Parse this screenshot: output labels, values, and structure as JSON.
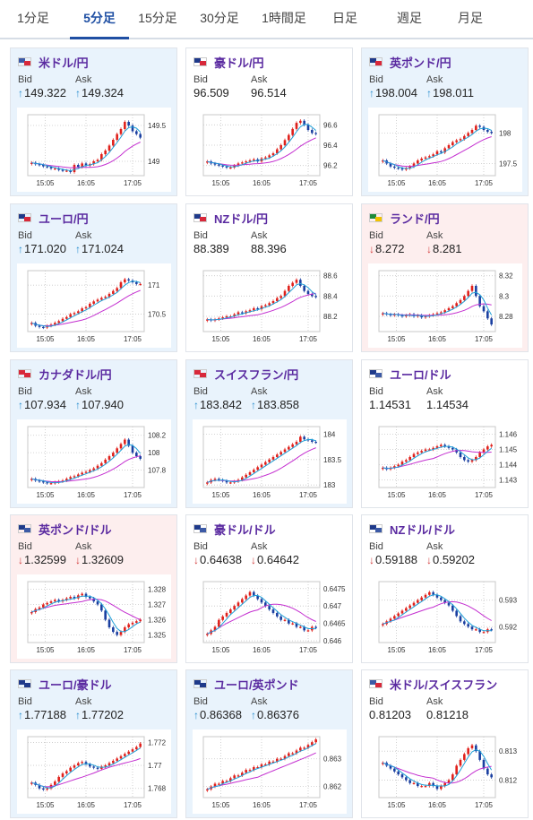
{
  "tabs": [
    {
      "label": "1分足",
      "active": false
    },
    {
      "label": "5分足",
      "active": true
    },
    {
      "label": "15分足",
      "active": false
    },
    {
      "label": "30分足",
      "active": false
    },
    {
      "label": "1時間足",
      "active": false
    },
    {
      "label": "日足",
      "active": false
    },
    {
      "label": "週足",
      "active": false
    },
    {
      "label": "月足",
      "active": false
    }
  ],
  "labels": {
    "bid": "Bid",
    "ask": "Ask"
  },
  "colors": {
    "up_candle": "#e0201b",
    "down_candle": "#1a3fa0",
    "ma_fast": "#1fa0d8",
    "ma_slow": "#c42fd0",
    "arrow_up": "#2a8fd0",
    "arrow_down": "#d23b3b",
    "pair_text": "#5a2aa0"
  },
  "cards": [
    {
      "pair": "米ドル/円",
      "flag": [
        "#3c5aa6",
        "#d8283a"
      ],
      "state": "up",
      "bid": "149.322",
      "ask": "149.324",
      "dir": "up"
    },
    {
      "pair": "豪ドル/円",
      "flag": [
        "#1f3a8a",
        "#d8283a"
      ],
      "state": "neutral",
      "bid": "96.509",
      "ask": "96.514",
      "dir": ""
    },
    {
      "pair": "英ポンド/円",
      "flag": [
        "#1f3a8a",
        "#d8283a"
      ],
      "state": "up",
      "bid": "198.004",
      "ask": "198.011",
      "dir": "up"
    },
    {
      "pair": "ユーロ/円",
      "flag": [
        "#1f3a8a",
        "#d8283a"
      ],
      "state": "up",
      "bid": "171.020",
      "ask": "171.024",
      "dir": "up"
    },
    {
      "pair": "NZドル/円",
      "flag": [
        "#1f3a8a",
        "#d8283a"
      ],
      "state": "neutral",
      "bid": "88.389",
      "ask": "88.396",
      "dir": ""
    },
    {
      "pair": "ランド/円",
      "flag": [
        "#1e8a3a",
        "#f2c200"
      ],
      "state": "down",
      "bid": "8.272",
      "ask": "8.281",
      "dir": "down"
    },
    {
      "pair": "カナダドル/円",
      "flag": [
        "#d8283a",
        "#d8283a"
      ],
      "state": "up",
      "bid": "107.934",
      "ask": "107.940",
      "dir": "up"
    },
    {
      "pair": "スイスフラン/円",
      "flag": [
        "#d8283a",
        "#d8283a"
      ],
      "state": "up",
      "bid": "183.842",
      "ask": "183.858",
      "dir": "up"
    },
    {
      "pair": "ユーロ/ドル",
      "flag": [
        "#1f3a8a",
        "#3c5aa6"
      ],
      "state": "neutral",
      "bid": "1.14531",
      "ask": "1.14534",
      "dir": ""
    },
    {
      "pair": "英ポンド/ドル",
      "flag": [
        "#1f3a8a",
        "#3c5aa6"
      ],
      "state": "down",
      "bid": "1.32599",
      "ask": "1.32609",
      "dir": "down"
    },
    {
      "pair": "豪ドル/ドル",
      "flag": [
        "#1f3a8a",
        "#3c5aa6"
      ],
      "state": "neutral",
      "bid": "0.64638",
      "ask": "0.64642",
      "dir": "down"
    },
    {
      "pair": "NZドル/ドル",
      "flag": [
        "#1f3a8a",
        "#3c5aa6"
      ],
      "state": "neutral",
      "bid": "0.59188",
      "ask": "0.59202",
      "dir": "down"
    },
    {
      "pair": "ユーロ/豪ドル",
      "flag": [
        "#1f3a8a",
        "#1f3a8a"
      ],
      "state": "up",
      "bid": "1.77188",
      "ask": "1.77202",
      "dir": "up"
    },
    {
      "pair": "ユーロ/英ポンド",
      "flag": [
        "#1f3a8a",
        "#1f3a8a"
      ],
      "state": "up",
      "bid": "0.86368",
      "ask": "0.86376",
      "dir": "up"
    },
    {
      "pair": "米ドル/スイスフラン",
      "flag": [
        "#3c5aa6",
        "#d8283a"
      ],
      "state": "neutral",
      "bid": "0.81203",
      "ask": "0.81218",
      "dir": ""
    }
  ],
  "chart_data": [
    {
      "type": "candlestick",
      "pair": "米ドル/円",
      "x_ticks": [
        "15:05",
        "16:05",
        "17:05"
      ],
      "y_ticks": [
        "149.5",
        "149"
      ],
      "ylim": [
        148.8,
        149.65
      ],
      "closes": [
        148.98,
        148.96,
        148.95,
        148.93,
        148.92,
        148.9,
        148.9,
        148.88,
        148.87,
        148.87,
        148.85,
        148.95,
        148.92,
        148.97,
        148.94,
        148.96,
        149.0,
        149.02,
        149.1,
        149.15,
        149.22,
        149.3,
        149.38,
        149.45,
        149.55,
        149.5,
        149.42,
        149.38,
        149.33
      ]
    },
    {
      "type": "candlestick",
      "pair": "豪ドル/円",
      "x_ticks": [
        "15:05",
        "16:05",
        "17:05"
      ],
      "y_ticks": [
        "96.6",
        "96.4",
        "96.2"
      ],
      "ylim": [
        96.1,
        96.7
      ],
      "closes": [
        96.24,
        96.22,
        96.21,
        96.2,
        96.19,
        96.18,
        96.18,
        96.2,
        96.22,
        96.23,
        96.24,
        96.25,
        96.26,
        96.24,
        96.27,
        96.28,
        96.3,
        96.32,
        96.36,
        96.4,
        96.45,
        96.5,
        96.56,
        96.62,
        96.64,
        96.6,
        96.55,
        96.52,
        96.51
      ]
    },
    {
      "type": "candlestick",
      "pair": "英ポンド/円",
      "x_ticks": [
        "15:05",
        "16:05",
        "17:05"
      ],
      "y_ticks": [
        "198",
        "197.5"
      ],
      "ylim": [
        197.3,
        198.3
      ],
      "closes": [
        197.55,
        197.5,
        197.45,
        197.43,
        197.42,
        197.4,
        197.42,
        197.45,
        197.5,
        197.55,
        197.58,
        197.6,
        197.62,
        197.65,
        197.7,
        197.68,
        197.75,
        197.8,
        197.85,
        197.88,
        197.9,
        197.95,
        198.0,
        198.05,
        198.12,
        198.1,
        198.05,
        198.02,
        198.0
      ]
    },
    {
      "type": "candlestick",
      "pair": "ユーロ/円",
      "x_ticks": [
        "15:05",
        "16:05",
        "17:05"
      ],
      "y_ticks": [
        "171",
        "170.5"
      ],
      "ylim": [
        170.2,
        171.25
      ],
      "closes": [
        170.35,
        170.3,
        170.28,
        170.27,
        170.3,
        170.32,
        170.35,
        170.38,
        170.42,
        170.45,
        170.5,
        170.52,
        170.55,
        170.6,
        170.62,
        170.68,
        170.72,
        170.75,
        170.78,
        170.8,
        170.85,
        170.9,
        170.95,
        171.05,
        171.1,
        171.08,
        171.05,
        171.02,
        171.02
      ]
    },
    {
      "type": "candlestick",
      "pair": "NZドル/円",
      "x_ticks": [
        "15:05",
        "16:05",
        "17:05"
      ],
      "y_ticks": [
        "88.6",
        "88.4",
        "88.2"
      ],
      "ylim": [
        88.05,
        88.65
      ],
      "closes": [
        88.17,
        88.16,
        88.17,
        88.18,
        88.19,
        88.2,
        88.2,
        88.22,
        88.24,
        88.23,
        88.25,
        88.26,
        88.28,
        88.27,
        88.3,
        88.31,
        88.33,
        88.35,
        88.38,
        88.4,
        88.45,
        88.5,
        88.53,
        88.56,
        88.5,
        88.45,
        88.42,
        88.4,
        88.39
      ]
    },
    {
      "type": "candlestick",
      "pair": "ランド/円",
      "x_ticks": [
        "15:05",
        "16:05",
        "17:05"
      ],
      "y_ticks": [
        "8.32",
        "8.3",
        "8.28"
      ],
      "ylim": [
        8.265,
        8.325
      ],
      "closes": [
        8.283,
        8.282,
        8.281,
        8.282,
        8.281,
        8.28,
        8.281,
        8.282,
        8.28,
        8.281,
        8.279,
        8.28,
        8.281,
        8.282,
        8.283,
        8.284,
        8.286,
        8.288,
        8.29,
        8.293,
        8.296,
        8.3,
        8.305,
        8.31,
        8.3,
        8.29,
        8.285,
        8.278,
        8.272
      ]
    },
    {
      "type": "candlestick",
      "pair": "カナダドル/円",
      "x_ticks": [
        "15:05",
        "16:05",
        "17:05"
      ],
      "y_ticks": [
        "108.2",
        "108",
        "107.8"
      ],
      "ylim": [
        107.6,
        108.3
      ],
      "closes": [
        107.7,
        107.68,
        107.67,
        107.66,
        107.65,
        107.65,
        107.66,
        107.67,
        107.68,
        107.7,
        107.72,
        107.73,
        107.75,
        107.77,
        107.78,
        107.8,
        107.82,
        107.85,
        107.88,
        107.92,
        107.96,
        108.0,
        108.05,
        108.1,
        108.15,
        108.08,
        108.0,
        107.96,
        107.93
      ]
    },
    {
      "type": "candlestick",
      "pair": "スイスフラン/円",
      "x_ticks": [
        "15:05",
        "16:05",
        "17:05"
      ],
      "y_ticks": [
        "184",
        "183.5",
        "183"
      ],
      "ylim": [
        182.95,
        184.15
      ],
      "closes": [
        183.05,
        183.1,
        183.12,
        183.1,
        183.08,
        183.05,
        183.05,
        183.07,
        183.1,
        183.15,
        183.2,
        183.25,
        183.3,
        183.35,
        183.4,
        183.45,
        183.5,
        183.55,
        183.6,
        183.65,
        183.7,
        183.75,
        183.8,
        183.85,
        183.95,
        183.9,
        183.88,
        183.85,
        183.84
      ]
    },
    {
      "type": "candlestick",
      "pair": "ユーロ/ドル",
      "x_ticks": [
        "15:05",
        "16:05",
        "17:05"
      ],
      "y_ticks": [
        "1.146",
        "1.145",
        "1.144",
        "1.143"
      ],
      "ylim": [
        1.1425,
        1.1465
      ],
      "closes": [
        1.1438,
        1.1437,
        1.1438,
        1.1439,
        1.144,
        1.1442,
        1.1443,
        1.1445,
        1.1447,
        1.1448,
        1.1449,
        1.145,
        1.145,
        1.1451,
        1.1452,
        1.1453,
        1.1452,
        1.1451,
        1.145,
        1.1448,
        1.1445,
        1.1443,
        1.1442,
        1.1443,
        1.1445,
        1.1448,
        1.145,
        1.1452,
        1.1453
      ]
    },
    {
      "type": "candlestick",
      "pair": "英ポンド/ドル",
      "x_ticks": [
        "15:05",
        "16:05",
        "17:05"
      ],
      "y_ticks": [
        "1.328",
        "1.327",
        "1.326",
        "1.325"
      ],
      "ylim": [
        1.3245,
        1.3285
      ],
      "closes": [
        1.3265,
        1.3267,
        1.3268,
        1.327,
        1.3271,
        1.3272,
        1.3273,
        1.3272,
        1.3273,
        1.3274,
        1.3275,
        1.3274,
        1.3276,
        1.3277,
        1.3275,
        1.3274,
        1.3272,
        1.327,
        1.3266,
        1.326,
        1.3255,
        1.3252,
        1.325,
        1.3252,
        1.3255,
        1.3257,
        1.3258,
        1.3259,
        1.326
      ]
    },
    {
      "type": "candlestick",
      "pair": "豪ドル/ドル",
      "x_ticks": [
        "15:05",
        "16:05",
        "17:05"
      ],
      "y_ticks": [
        "0.6475",
        "0.647",
        "0.6465",
        "0.646"
      ],
      "ylim": [
        0.64595,
        0.6477
      ],
      "closes": [
        0.6462,
        0.6463,
        0.6464,
        0.6466,
        0.6467,
        0.6468,
        0.6469,
        0.647,
        0.6471,
        0.6472,
        0.6473,
        0.6474,
        0.6473,
        0.6472,
        0.6471,
        0.647,
        0.6469,
        0.6468,
        0.6467,
        0.6466,
        0.6466,
        0.6465,
        0.6465,
        0.6464,
        0.6464,
        0.6463,
        0.6463,
        0.6464,
        0.64638
      ]
    },
    {
      "type": "candlestick",
      "pair": "NZドル/ドル",
      "x_ticks": [
        "15:05",
        "16:05",
        "17:05"
      ],
      "y_ticks": [
        "0.593",
        "0.592"
      ],
      "ylim": [
        0.5914,
        0.5937
      ],
      "closes": [
        0.5921,
        0.5922,
        0.5923,
        0.5924,
        0.5925,
        0.5926,
        0.5927,
        0.5928,
        0.5929,
        0.593,
        0.5931,
        0.5932,
        0.5933,
        0.5932,
        0.5931,
        0.593,
        0.5929,
        0.5928,
        0.5926,
        0.5924,
        0.5922,
        0.5921,
        0.592,
        0.5919,
        0.5919,
        0.5918,
        0.5918,
        0.5919,
        0.59188
      ]
    },
    {
      "type": "candlestick",
      "pair": "ユーロ/豪ドル",
      "x_ticks": [
        "15:05",
        "16:05",
        "17:05"
      ],
      "y_ticks": [
        "1.772",
        "1.77",
        "1.768"
      ],
      "ylim": [
        1.7672,
        1.7725
      ],
      "closes": [
        1.7685,
        1.7683,
        1.768,
        1.7679,
        1.768,
        1.7683,
        1.7686,
        1.769,
        1.7693,
        1.7695,
        1.7698,
        1.77,
        1.7702,
        1.7703,
        1.7701,
        1.7699,
        1.7698,
        1.7697,
        1.7699,
        1.77,
        1.7702,
        1.7704,
        1.7706,
        1.7708,
        1.771,
        1.7712,
        1.7714,
        1.7716,
        1.7719
      ]
    },
    {
      "type": "candlestick",
      "pair": "ユーロ/英ポンド",
      "x_ticks": [
        "15:05",
        "16:05",
        "17:05"
      ],
      "y_ticks": [
        "0.863",
        "0.862"
      ],
      "ylim": [
        0.8616,
        0.8638
      ],
      "closes": [
        0.8619,
        0.862,
        0.8621,
        0.8621,
        0.8622,
        0.8622,
        0.8623,
        0.8624,
        0.8624,
        0.8625,
        0.8626,
        0.8626,
        0.8627,
        0.8627,
        0.8628,
        0.8628,
        0.8629,
        0.8629,
        0.863,
        0.863,
        0.8631,
        0.8632,
        0.8632,
        0.8633,
        0.8634,
        0.8634,
        0.8635,
        0.8636,
        0.8637
      ]
    },
    {
      "type": "candlestick",
      "pair": "米ドル/スイスフラン",
      "x_ticks": [
        "15:05",
        "16:05",
        "17:05"
      ],
      "y_ticks": [
        "0.813",
        "0.812"
      ],
      "ylim": [
        0.8114,
        0.8135
      ],
      "closes": [
        0.8126,
        0.8125,
        0.8124,
        0.8123,
        0.8122,
        0.8121,
        0.812,
        0.8119,
        0.8119,
        0.8118,
        0.8118,
        0.8118,
        0.8119,
        0.8118,
        0.8117,
        0.8118,
        0.8119,
        0.812,
        0.8122,
        0.8125,
        0.8127,
        0.8129,
        0.8131,
        0.8132,
        0.813,
        0.8127,
        0.8124,
        0.8122,
        0.8121
      ]
    }
  ]
}
